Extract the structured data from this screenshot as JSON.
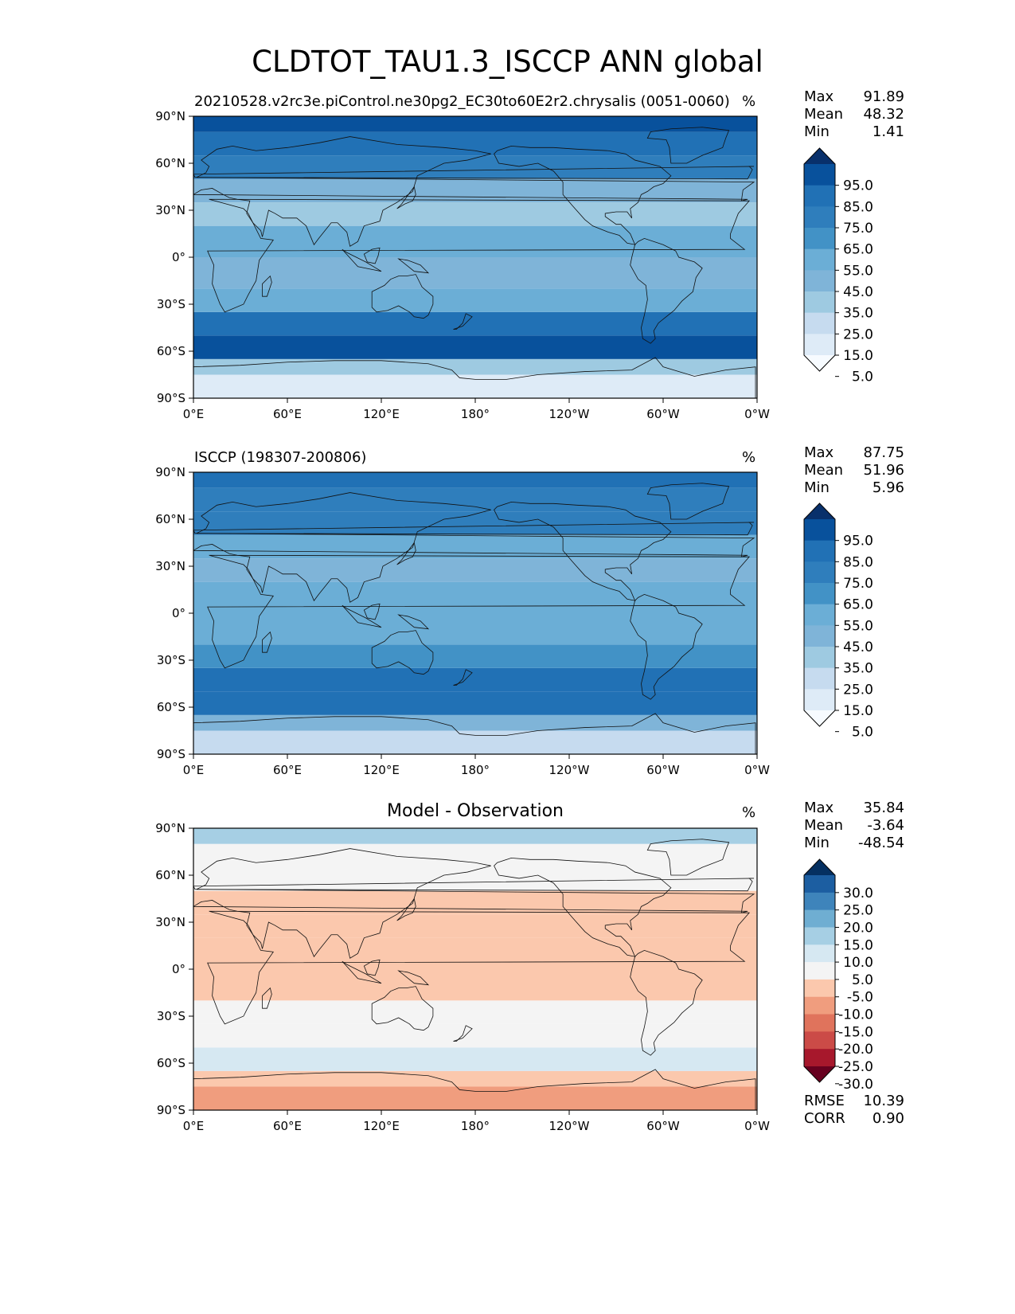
{
  "figure_title": "CLDTOT_TAU1.3_ISCCP ANN global",
  "panels": [
    {
      "title": "20210528.v2rc3e.piControl.ne30pg2_EC30to60E2r2.chrysalis (0051-0060)",
      "unit": "%",
      "stats": [
        {
          "label": "Max",
          "value": "91.89"
        },
        {
          "label": "Mean",
          "value": "48.32"
        },
        {
          "label": "Min",
          "value": "1.41"
        }
      ],
      "colorbar_labels": [
        "95.0",
        "85.0",
        "75.0",
        "65.0",
        "55.0",
        "45.0",
        "35.0",
        "25.0",
        "15.0",
        "5.0"
      ]
    },
    {
      "title": "ISCCP (198307-200806)",
      "unit": "%",
      "stats": [
        {
          "label": "Max",
          "value": "87.75"
        },
        {
          "label": "Mean",
          "value": "51.96"
        },
        {
          "label": "Min",
          "value": "5.96"
        }
      ],
      "colorbar_labels": [
        "95.0",
        "85.0",
        "75.0",
        "65.0",
        "55.0",
        "45.0",
        "35.0",
        "25.0",
        "15.0",
        "5.0"
      ]
    },
    {
      "title": "Model - Observation",
      "unit": "%",
      "stats": [
        {
          "label": "Max",
          "value": "35.84"
        },
        {
          "label": "Mean",
          "value": "-3.64"
        },
        {
          "label": "Min",
          "value": "-48.54"
        }
      ],
      "colorbar_labels": [
        "30.0",
        "25.0",
        "20.0",
        "15.0",
        "10.0",
        "5.0",
        "-5.0",
        "-10.0",
        "-15.0",
        "-20.0",
        "-25.0",
        "-30.0"
      ],
      "metrics": [
        {
          "label": "RMSE",
          "value": "10.39"
        },
        {
          "label": "CORR",
          "value": "0.90"
        }
      ]
    }
  ],
  "chart_data": {
    "type": "heatmap",
    "title": "CLDTOT_TAU1.3_ISCCP ANN global",
    "x_ticks": [
      "0°E",
      "60°E",
      "120°E",
      "180°",
      "120°W",
      "60°W",
      "0°W"
    ],
    "y_ticks": [
      "90°N",
      "60°N",
      "30°N",
      "0°",
      "30°S",
      "60°S",
      "90°S"
    ],
    "lon_range": [
      0,
      360
    ],
    "lat_range": [
      -90,
      90
    ],
    "series": [
      {
        "name": "20210528.v2rc3e.piControl.ne30pg2_EC30to60E2r2.chrysalis (0051-0060)",
        "lat_bands": [
          -90,
          -75,
          -65,
          -50,
          -35,
          -20,
          0,
          20,
          35,
          50,
          65,
          80,
          90
        ],
        "zonal_mean": [
          8,
          25,
          88,
          82,
          50,
          42,
          45,
          30,
          35,
          70,
          75,
          85
        ],
        "stats": {
          "max": 91.89,
          "mean": 48.32,
          "min": 1.41
        }
      },
      {
        "name": "ISCCP (198307-200806)",
        "lat_bands": [
          -90,
          -75,
          -65,
          -50,
          -35,
          -20,
          0,
          20,
          35,
          50,
          65,
          80,
          90
        ],
        "zonal_mean": [
          22,
          35,
          82,
          78,
          55,
          48,
          52,
          40,
          45,
          68,
          72,
          75
        ],
        "stats": {
          "max": 87.75,
          "mean": 51.96,
          "min": 5.96
        }
      },
      {
        "name": "Model - Observation",
        "lat_bands": [
          -90,
          -75,
          -65,
          -50,
          -35,
          -20,
          0,
          20,
          35,
          50,
          65,
          80,
          90
        ],
        "zonal_mean": [
          -14,
          -10,
          6,
          4,
          -5,
          -6,
          -7,
          -10,
          -10,
          2,
          3,
          10
        ],
        "stats": {
          "max": 35.84,
          "mean": -3.64,
          "min": -48.54,
          "rmse": 10.39,
          "corr": 0.9
        }
      }
    ],
    "colorbar_levels_absolute": [
      0,
      5,
      15,
      25,
      35,
      45,
      55,
      65,
      75,
      85,
      95,
      100
    ],
    "colorbar_levels_diff": [
      -30,
      -25,
      -20,
      -15,
      -10,
      -5,
      5,
      10,
      15,
      20,
      25,
      30
    ],
    "colors": {
      "blues": [
        "#f7fbff",
        "#deebf7",
        "#c6dbef",
        "#9ecae1",
        "#7fb4d8",
        "#6baed6",
        "#4292c6",
        "#2f7ebc",
        "#2171b5",
        "#08519c",
        "#08306b"
      ],
      "diverging": [
        "#67001f",
        "#a7182c",
        "#cb4b47",
        "#e0735c",
        "#f09d7e",
        "#fbc8ad",
        "#f4f4f4",
        "#d6e8f2",
        "#a6cfe4",
        "#6faed2",
        "#3e84bb",
        "#1c5ea1",
        "#053061"
      ]
    },
    "colorbar_extend": "both",
    "grid": false,
    "coastlines": true
  }
}
